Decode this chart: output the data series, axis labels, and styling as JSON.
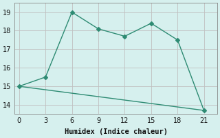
{
  "line1_x": [
    0,
    3,
    6,
    9,
    12,
    15,
    18,
    21
  ],
  "line1_y": [
    15.0,
    15.5,
    19.0,
    18.1,
    17.7,
    18.4,
    17.5,
    13.7
  ],
  "line2_x": [
    0,
    21
  ],
  "line2_y": [
    15.0,
    13.7
  ],
  "color": "#2e8b73",
  "bg_color": "#d6f0ee",
  "grid_color": "#c0c0c0",
  "xlabel": "Humidex (Indice chaleur)",
  "xlim": [
    -0.5,
    22.5
  ],
  "ylim": [
    13.5,
    19.5
  ],
  "xticks": [
    0,
    3,
    6,
    9,
    12,
    15,
    18,
    21
  ],
  "yticks": [
    14,
    15,
    16,
    17,
    18,
    19
  ],
  "marker": "D",
  "markersize": 3,
  "linewidth": 1.0,
  "xlabel_fontsize": 7.5,
  "tick_fontsize": 7
}
